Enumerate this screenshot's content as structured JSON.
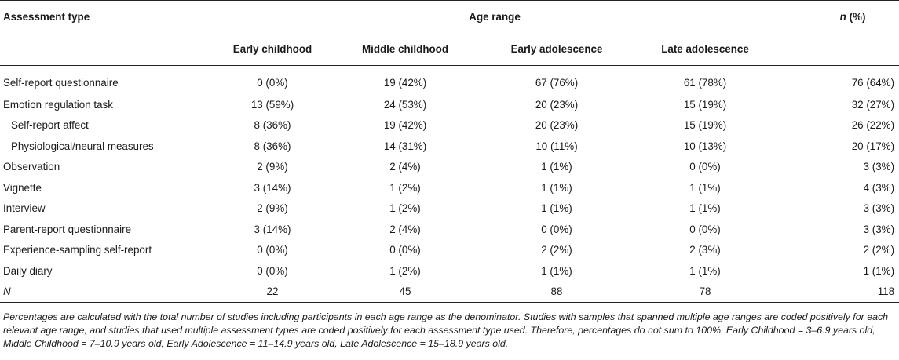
{
  "table": {
    "header": {
      "assessment_type": "Assessment type",
      "age_range": "Age range",
      "n_pct_italic": "n",
      "n_pct_rest": " (%)",
      "columns": [
        "Early childhood",
        "Middle childhood",
        "Early adolescence",
        "Late adolescence"
      ]
    },
    "rows": [
      {
        "label": "Self-report questionnaire",
        "indent": false,
        "values": [
          "0 (0%)",
          "19 (42%)",
          "67 (76%)",
          "61 (78%)",
          "76 (64%)"
        ]
      },
      {
        "label": "Emotion regulation task",
        "indent": false,
        "values": [
          "13 (59%)",
          "24 (53%)",
          "20 (23%)",
          "15 (19%)",
          "32 (27%)"
        ]
      },
      {
        "label": "Self-report affect",
        "indent": true,
        "values": [
          "8 (36%)",
          "19 (42%)",
          "20 (23%)",
          "15 (19%)",
          "26 (22%)"
        ]
      },
      {
        "label": "Physiological/neural measures",
        "indent": true,
        "values": [
          "8 (36%)",
          "14 (31%)",
          "10 (11%)",
          "10 (13%)",
          "20 (17%)"
        ]
      },
      {
        "label": "Observation",
        "indent": false,
        "values": [
          "2 (9%)",
          "2 (4%)",
          "1 (1%)",
          "0 (0%)",
          "3 (3%)"
        ]
      },
      {
        "label": "Vignette",
        "indent": false,
        "values": [
          "3 (14%)",
          "1 (2%)",
          "1 (1%)",
          "1 (1%)",
          "4 (3%)"
        ]
      },
      {
        "label": "Interview",
        "indent": false,
        "values": [
          "2 (9%)",
          "1 (2%)",
          "1 (1%)",
          "1 (1%)",
          "3 (3%)"
        ]
      },
      {
        "label": "Parent-report questionnaire",
        "indent": false,
        "values": [
          "3 (14%)",
          "2 (4%)",
          "0 (0%)",
          "0 (0%)",
          "3 (3%)"
        ]
      },
      {
        "label": "Experience-sampling self-report",
        "indent": false,
        "values": [
          "0 (0%)",
          "0 (0%)",
          "2 (2%)",
          "2 (3%)",
          "2 (2%)"
        ]
      },
      {
        "label": "Daily diary",
        "indent": false,
        "values": [
          "0 (0%)",
          "1 (2%)",
          "1 (1%)",
          "1 (1%)",
          "1 (1%)"
        ]
      }
    ],
    "total": {
      "label": "N",
      "values": [
        "22",
        "45",
        "88",
        "78",
        "118"
      ]
    }
  },
  "footnote": {
    "text": "Percentages are calculated with the total number of studies including participants in each age range as the denominator. Studies with samples that spanned multiple age ranges are coded positively for each relevant age range, and studies that used multiple assessment types are coded positively for each assessment type used. Therefore, percentages do not sum to 100%. Early Childhood = 3–6.9 years old, Middle Childhood = 7–10.9 years old, Early Adolescence = 11–14.9 years old, Late Adolescence = 15–18.9 years old."
  }
}
